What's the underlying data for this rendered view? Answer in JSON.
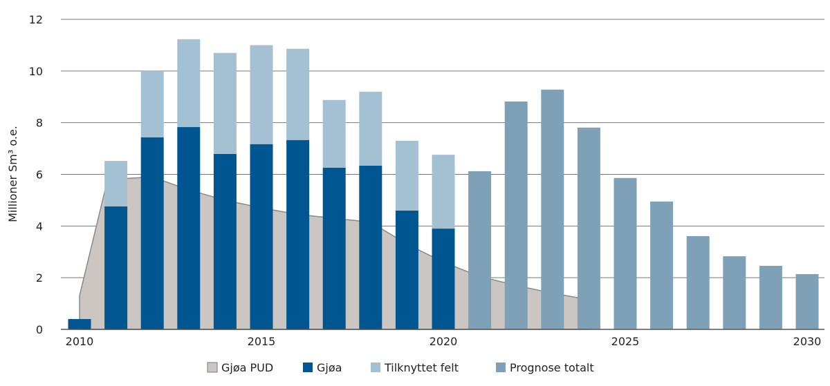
{
  "chart_data": {
    "type": "bar",
    "ylabel": "Millioner Sm³ o.e.",
    "xlabel": "",
    "ylim": [
      0,
      12
    ],
    "yticks": [
      0,
      2,
      4,
      6,
      8,
      10,
      12
    ],
    "xticks": [
      2010,
      2015,
      2020,
      2025,
      2030
    ],
    "grid": true,
    "legend_position": "bottom",
    "colors": {
      "Gjøa PUD": "#cbc6c1",
      "Gjøa": "#005691",
      "Tilknyttet felt": "#a4c1d3",
      "Prognose totalt": "#7ea1b8"
    },
    "legend": [
      "Gjøa PUD",
      "Gjøa",
      "Tilknyttet felt",
      "Prognose totalt"
    ],
    "years": [
      2010,
      2011,
      2012,
      2013,
      2014,
      2015,
      2016,
      2017,
      2018,
      2019,
      2020,
      2021,
      2022,
      2023,
      2024,
      2025,
      2026,
      2027,
      2028,
      2029,
      2030
    ],
    "series": [
      {
        "name": "Gjøa",
        "type": "bar",
        "values": [
          0.4,
          4.76,
          7.43,
          7.83,
          6.79,
          7.17,
          7.33,
          6.26,
          6.34,
          4.6,
          3.9,
          null,
          null,
          null,
          null,
          null,
          null,
          null,
          null,
          null,
          null
        ]
      },
      {
        "name": "Tilknyttet felt",
        "type": "bar-stacked",
        "values": [
          0,
          1.76,
          2.57,
          3.4,
          3.91,
          3.83,
          3.53,
          2.62,
          2.86,
          2.7,
          2.86,
          null,
          null,
          null,
          null,
          null,
          null,
          null,
          null,
          null,
          null
        ]
      },
      {
        "name": "Prognose totalt",
        "type": "bar",
        "values": [
          null,
          null,
          null,
          null,
          null,
          null,
          null,
          null,
          null,
          null,
          null,
          6.12,
          8.82,
          9.28,
          7.81,
          5.86,
          4.95,
          3.61,
          2.83,
          2.46,
          2.14
        ]
      },
      {
        "name": "Gjøa PUD",
        "type": "area",
        "values": [
          1.3,
          5.8,
          5.9,
          5.4,
          5.0,
          4.7,
          4.45,
          4.3,
          4.15,
          3.3,
          2.6,
          2.05,
          1.7,
          1.4,
          1.15,
          null,
          null,
          null,
          null,
          null,
          null
        ]
      }
    ]
  }
}
